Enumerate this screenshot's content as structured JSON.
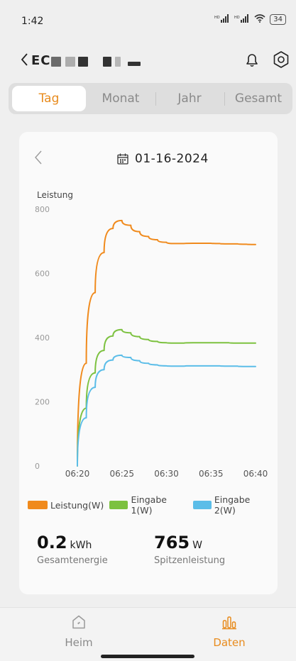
{
  "status": {
    "time": "1:42",
    "signal1": "HD",
    "signal2": "HD",
    "battery": "34"
  },
  "header": {
    "title_visible": "EC"
  },
  "tabs": [
    {
      "label": "Tag",
      "active": true
    },
    {
      "label": "Monat",
      "active": false
    },
    {
      "label": "Jahr",
      "active": false
    },
    {
      "label": "Gesamt",
      "active": false
    }
  ],
  "date": "01-16-2024",
  "chart_data": {
    "type": "line",
    "ylabel": "Leistung",
    "ylim": [
      0,
      800
    ],
    "yticks": [
      0,
      200,
      400,
      600,
      800
    ],
    "x_ticks": [
      "06:20",
      "06:25",
      "06:30",
      "06:35",
      "06:40"
    ],
    "x": [
      "06:20",
      "06:21",
      "06:22",
      "06:23",
      "06:24",
      "06:25",
      "06:26",
      "06:27",
      "06:28",
      "06:29",
      "06:30",
      "06:31",
      "06:32",
      "06:33",
      "06:34",
      "06:35",
      "06:36",
      "06:37",
      "06:38",
      "06:39",
      "06:40"
    ],
    "series": [
      {
        "name": "Leistung(W)",
        "color": "#f08a1c",
        "values": [
          0,
          320,
          540,
          665,
          740,
          765,
          750,
          730,
          715,
          705,
          697,
          693,
          693,
          694,
          694,
          694,
          693,
          692,
          692,
          691,
          690
        ]
      },
      {
        "name": "Eingabe 1(W)",
        "color": "#7cc13f",
        "values": [
          0,
          180,
          290,
          360,
          405,
          425,
          415,
          403,
          394,
          388,
          384,
          383,
          383,
          384,
          384,
          384,
          384,
          384,
          383,
          383,
          383
        ]
      },
      {
        "name": "Eingabe 2(W)",
        "color": "#5bbde8",
        "values": [
          0,
          150,
          245,
          300,
          330,
          345,
          338,
          328,
          320,
          315,
          312,
          311,
          311,
          312,
          312,
          312,
          312,
          311,
          311,
          310,
          310
        ]
      }
    ],
    "grid": false,
    "legend_position": "bottom"
  },
  "stats": [
    {
      "value": "0.2",
      "unit": "kWh",
      "label": "Gesamtenergie"
    },
    {
      "value": "765",
      "unit": "W",
      "label": "Spitzenleistung"
    }
  ],
  "nav": [
    {
      "label": "Heim",
      "icon": "home-icon",
      "active": false
    },
    {
      "label": "Daten",
      "icon": "bar-chart-icon",
      "active": true
    }
  ],
  "colors": {
    "accent": "#e88b1d",
    "inactive": "#8a8a8a"
  }
}
